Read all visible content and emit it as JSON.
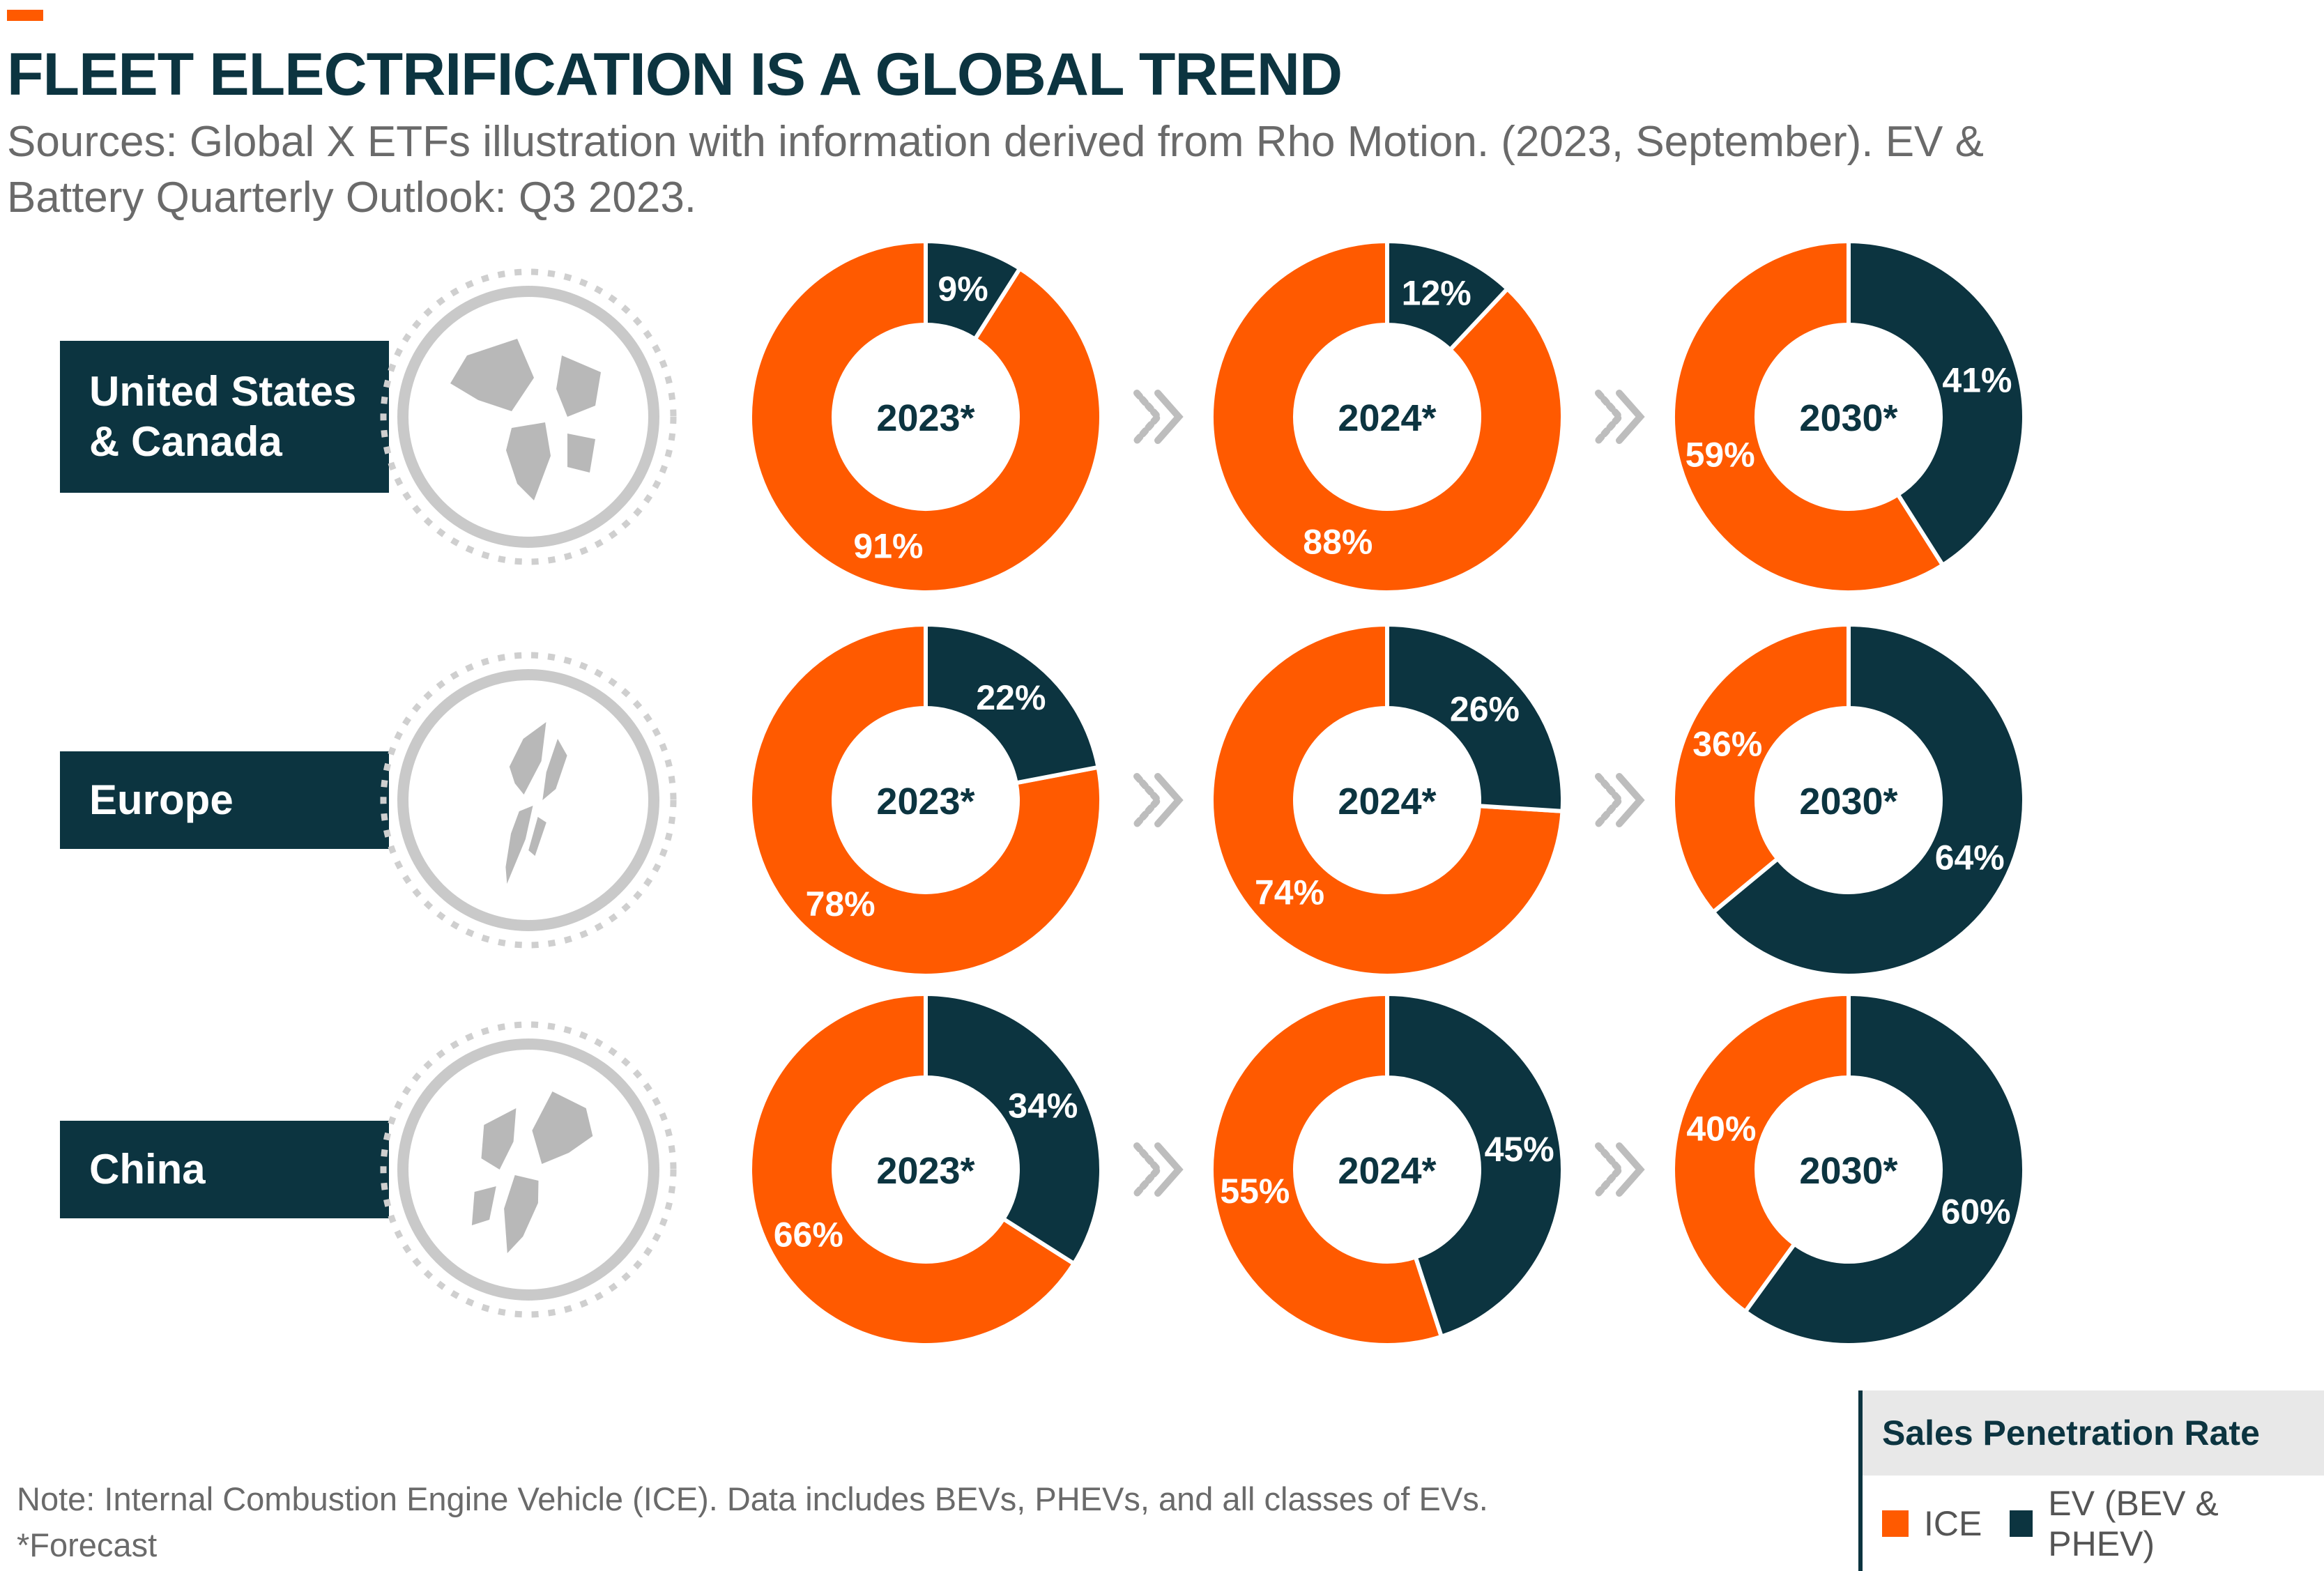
{
  "title": "FLEET ELECTRIFICATION IS A GLOBAL TREND",
  "subtitle": "Sources: Global X ETFs illustration with information derived from Rho Motion. (2023, September). EV & Battery Quarterly Outlook: Q3 2023.",
  "note": {
    "line1": "Note: Internal Combustion Engine Vehicle (ICE). Data includes BEVs, PHEVs, and all classes of EVs.",
    "line2": "*Forecast"
  },
  "legend": {
    "title": "Sales Penetration Rate",
    "items": [
      {
        "label": "ICE",
        "color": "#ff5a00"
      },
      {
        "label": "EV (BEV & PHEV)",
        "color": "#0c3440"
      }
    ]
  },
  "colors": {
    "ice": "#ff5a00",
    "ev": "#0c3440",
    "region_box": "#0c3440",
    "globe": "#c4c4c4"
  },
  "chart_data": {
    "type": "pie",
    "title": "FLEET ELECTRIFICATION IS A GLOBAL TREND",
    "variant": "donut grid",
    "series": [
      "ICE",
      "EV (BEV & PHEV)"
    ],
    "rows": [
      {
        "region": "United States & Canada",
        "region_lines": [
          "United States",
          "& Canada"
        ],
        "charts": [
          {
            "year": "2023*",
            "ice": 91,
            "ev": 9,
            "ice_label": "91%",
            "ev_label": "9%"
          },
          {
            "year": "2024*",
            "ice": 88,
            "ev": 12,
            "ice_label": "88%",
            "ev_label": "12%"
          },
          {
            "year": "2030*",
            "ice": 59,
            "ev": 41,
            "ice_label": "59%",
            "ev_label": "41%"
          }
        ]
      },
      {
        "region": "Europe",
        "region_lines": [
          "Europe"
        ],
        "charts": [
          {
            "year": "2023*",
            "ice": 78,
            "ev": 22,
            "ice_label": "78%",
            "ev_label": "22%"
          },
          {
            "year": "2024*",
            "ice": 74,
            "ev": 26,
            "ice_label": "74%",
            "ev_label": "26%"
          },
          {
            "year": "2030*",
            "ice": 36,
            "ev": 64,
            "ice_label": "36%",
            "ev_label": "64%"
          }
        ]
      },
      {
        "region": "China",
        "region_lines": [
          "China"
        ],
        "charts": [
          {
            "year": "2023*",
            "ice": 66,
            "ev": 34,
            "ice_label": "66%",
            "ev_label": "34%"
          },
          {
            "year": "2024*",
            "ice": 55,
            "ev": 45,
            "ice_label": "55%",
            "ev_label": "45%"
          },
          {
            "year": "2030*",
            "ice": 40,
            "ev": 60,
            "ice_label": "40%",
            "ev_label": "60%"
          }
        ]
      }
    ]
  }
}
